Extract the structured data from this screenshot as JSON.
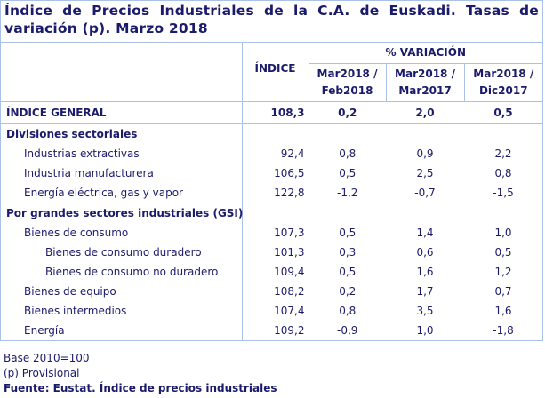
{
  "title": "Índice de Precios Industriales de la C.A. de Euskadi. Tasas de variación (p). Marzo 2018",
  "header": {
    "indice": "ÍNDICE",
    "variacion": "% VARIACIÓN",
    "cols": [
      "Mar2018 /",
      "Feb2018",
      "Mar2018 /",
      "Mar2017",
      "Mar2018 /",
      "Dic2017"
    ]
  },
  "general": {
    "label": "ÍNDICE GENERAL",
    "values": [
      "108,3",
      "0,2",
      "2,0",
      "0,5"
    ]
  },
  "sections": [
    {
      "label": "Divisiones sectoriales",
      "rows": [
        {
          "label": "Industrias extractivas",
          "values": [
            "92,4",
            "0,8",
            "0,9",
            "2,2"
          ]
        },
        {
          "label": "Industria manufacturera",
          "values": [
            "106,5",
            "0,5",
            "2,5",
            "0,8"
          ]
        },
        {
          "label": "Energía eléctrica, gas y vapor",
          "values": [
            "122,8",
            "-1,2",
            "-0,7",
            "-1,5"
          ]
        }
      ]
    },
    {
      "label": "Por grandes sectores industriales (GSI)",
      "rows": [
        {
          "label": "Bienes de consumo",
          "values": [
            "107,3",
            "0,5",
            "1,4",
            "1,0"
          ]
        },
        {
          "label": "Bienes de consumo duradero",
          "values": [
            "101,3",
            "0,3",
            "0,6",
            "0,5"
          ]
        },
        {
          "label": "Bienes de consumo no duradero",
          "values": [
            "109,4",
            "0,5",
            "1,6",
            "1,2"
          ]
        },
        {
          "label": "Bienes de equipo",
          "values": [
            "108,2",
            "0,2",
            "1,7",
            "0,7"
          ]
        },
        {
          "label": "Bienes intermedios",
          "values": [
            "107,4",
            "0,8",
            "3,5",
            "1,6"
          ]
        },
        {
          "label": "Energía",
          "values": [
            "109,2",
            "-0,9",
            "1,0",
            "-1,8"
          ]
        }
      ]
    }
  ],
  "footer": {
    "base": "Base 2010=100",
    "provisional": "(p) Provisional",
    "source": "Fuente: Eustat. Índice de precios industriales"
  }
}
